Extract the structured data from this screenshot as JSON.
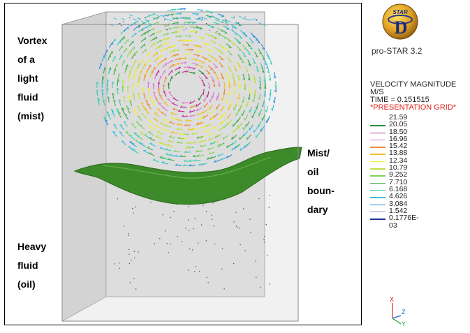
{
  "annotations": {
    "vortex": [
      "Vortex",
      "of a",
      "light",
      "fluid",
      "(mist)"
    ],
    "boundary": [
      "Mist/",
      "oil",
      "boun-",
      "dary"
    ],
    "heavy": [
      "Heavy",
      "fluid",
      "(oil)"
    ]
  },
  "panel": {
    "logo_text": "STAR",
    "logo_letter": "D",
    "product": "pro-STAR 3.2",
    "quantity": "VELOCITY MAGNITUDE",
    "units": "M/S",
    "time": "TIME = 0.151515",
    "grid_note": "*PRESENTATION GRID*"
  },
  "legend": {
    "entries": [
      {
        "value": "21.59",
        "color": null
      },
      {
        "value": "20.05",
        "color": "#2e8b3a"
      },
      {
        "value": "18.50",
        "color": "#c0309a"
      },
      {
        "value": "16.96",
        "color": "#e07ad0"
      },
      {
        "value": "15.42",
        "color": "#f08a3a"
      },
      {
        "value": "13.88",
        "color": "#f0c020"
      },
      {
        "value": "12.34",
        "color": "#f0f030"
      },
      {
        "value": "10.79",
        "color": "#c0e040"
      },
      {
        "value": "9.252",
        "color": "#80d060"
      },
      {
        "value": "7.710",
        "color": "#40b050"
      },
      {
        "value": "6.168",
        "color": "#40d0b0"
      },
      {
        "value": "4.626",
        "color": "#40c0e0"
      },
      {
        "value": "3.084",
        "color": "#3090e0"
      },
      {
        "value": "1.542",
        "color": "#b090d0"
      },
      {
        "value": "0.1776E-03",
        "color": "#2030a0"
      }
    ]
  },
  "axes": {
    "x": "X",
    "z": "Z",
    "y": "Y"
  },
  "colors": {
    "surface": "#3d8a2a",
    "box": "#c8c8c8",
    "grid_note": "#e0201a"
  }
}
